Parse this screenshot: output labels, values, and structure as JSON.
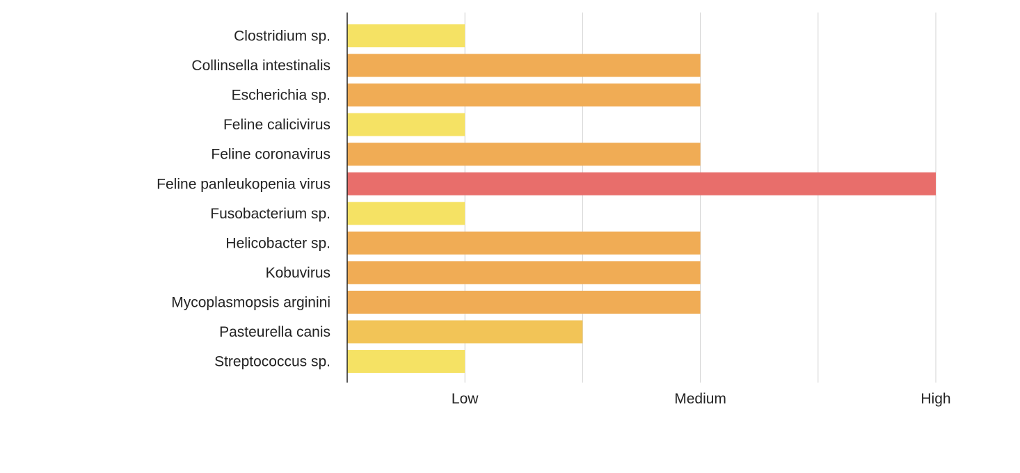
{
  "chart_data": {
    "type": "bar",
    "orientation": "horizontal",
    "title": "",
    "xlabel": "",
    "ylabel": "",
    "categories": [
      "Clostridium sp.",
      "Collinsella intestinalis",
      "Escherichia sp.",
      "Feline calicivirus",
      "Feline coronavirus",
      "Feline panleukopenia virus",
      "Fusobacterium sp.",
      "Helicobacter sp.",
      "Kobuvirus",
      "Mycoplasmopsis arginini",
      "Pasteurella canis",
      "Streptococcus sp."
    ],
    "values": [
      1,
      3,
      3,
      1,
      3,
      5,
      1,
      3,
      3,
      3,
      2,
      1
    ],
    "bar_colors": [
      "#F5E264",
      "#F0AC55",
      "#F0AC55",
      "#F5E264",
      "#F0AC55",
      "#E86E6B",
      "#F5E264",
      "#F0AC55",
      "#F0AC55",
      "#F0AC55",
      "#F2C457",
      "#F5E264"
    ],
    "xlim": [
      0,
      5
    ],
    "x_ticks": [
      {
        "value": 1,
        "label": "Low"
      },
      {
        "value": 3,
        "label": "Medium"
      },
      {
        "value": 5,
        "label": "High"
      }
    ],
    "gridlines_at": [
      1,
      2,
      3,
      4,
      5
    ],
    "grid": true,
    "legend": "none"
  }
}
